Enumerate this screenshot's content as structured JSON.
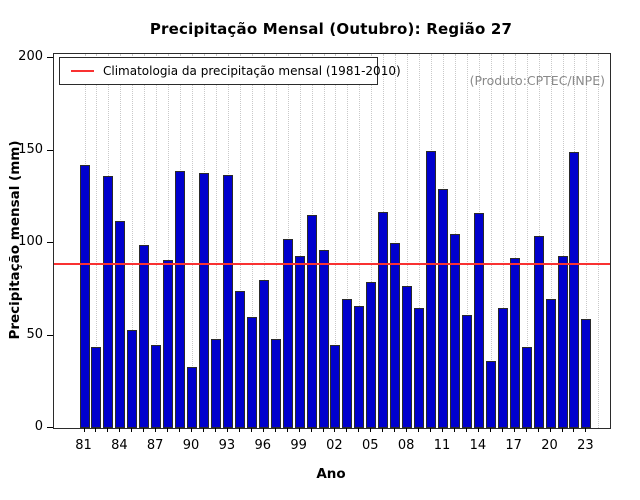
{
  "title": "Precipitação Mensal (Outubro): Região 27",
  "legend": {
    "label": "Climatologia da precipitação mensal (1981-2010)",
    "line_color": "#FF0000"
  },
  "watermark": "(Produto:CPTEC/INPE)",
  "chart_data": {
    "type": "bar",
    "title": "Precipitação Mensal (Outubro): Região 27",
    "xlabel": "Ano",
    "ylabel": "Precipitação mensal (mm)",
    "ylim": [
      0,
      200
    ],
    "y_ticks": [
      0,
      50,
      100,
      150,
      200
    ],
    "x_tick_label_step": 3,
    "grid": "vertical-dotted",
    "legend_position": "top-left",
    "bar_color": "#0000CD",
    "climatology_line_color": "#FF0000",
    "climatology_value": 88.5,
    "years": [
      1981,
      1982,
      1983,
      1984,
      1985,
      1986,
      1987,
      1988,
      1989,
      1990,
      1991,
      1992,
      1993,
      1994,
      1995,
      1996,
      1997,
      1998,
      1999,
      2000,
      2001,
      2002,
      2003,
      2004,
      2005,
      2006,
      2007,
      2008,
      2009,
      2010,
      2011,
      2012,
      2013,
      2014,
      2015,
      2016,
      2017,
      2018,
      2019,
      2020,
      2021,
      2022,
      2023
    ],
    "values": [
      142,
      44,
      136,
      112,
      53,
      99,
      45,
      91,
      139,
      33,
      138,
      48,
      137,
      74,
      60,
      80,
      48,
      102,
      93,
      115,
      96,
      45,
      70,
      66,
      79,
      117,
      100,
      77,
      65,
      150,
      129,
      105,
      61,
      116,
      36,
      65,
      92,
      44,
      104,
      70,
      93,
      149,
      59
    ]
  }
}
